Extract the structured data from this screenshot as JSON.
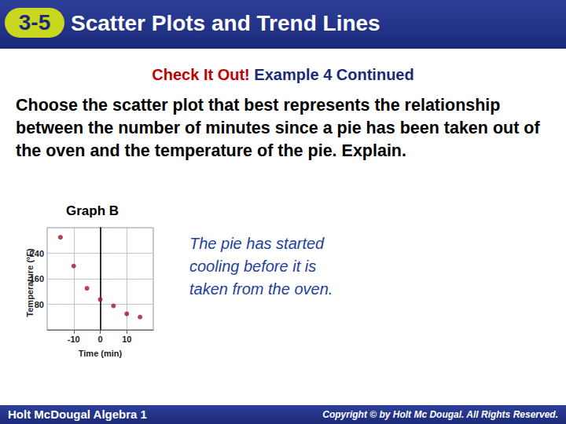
{
  "slide": {
    "section": "3-5",
    "title": "Scatter Plots and Trend Lines",
    "subtitle_lead": "Check It Out!",
    "subtitle": "Example 4 Continued",
    "question": "Choose the scatter plot that best represents the relationship between the number of minutes since a pie has been taken out of the oven and the temperature of the pie. Explain.",
    "graph_label": "Graph B",
    "explanation": "The pie has started cooling before it is taken from the oven.",
    "footer": "Holt McDougal Algebra 1",
    "copyright": "Copyright © by Holt Mc Dougal. All Rights Reserved."
  },
  "chart_data": {
    "type": "scatter",
    "x_label": "Time (min)",
    "y_label": "Temperature (°F)",
    "x": [
      -15,
      -10,
      -5,
      0,
      5,
      10,
      15
    ],
    "values": [
      290,
      200,
      130,
      95,
      75,
      50,
      40
    ],
    "color": "#a3122e",
    "xlim": [
      -20,
      20
    ],
    "xticks": [
      -10,
      0,
      10
    ],
    "ylim": [
      0,
      320
    ],
    "yticks": [
      80,
      160,
      240
    ],
    "grid": true
  }
}
